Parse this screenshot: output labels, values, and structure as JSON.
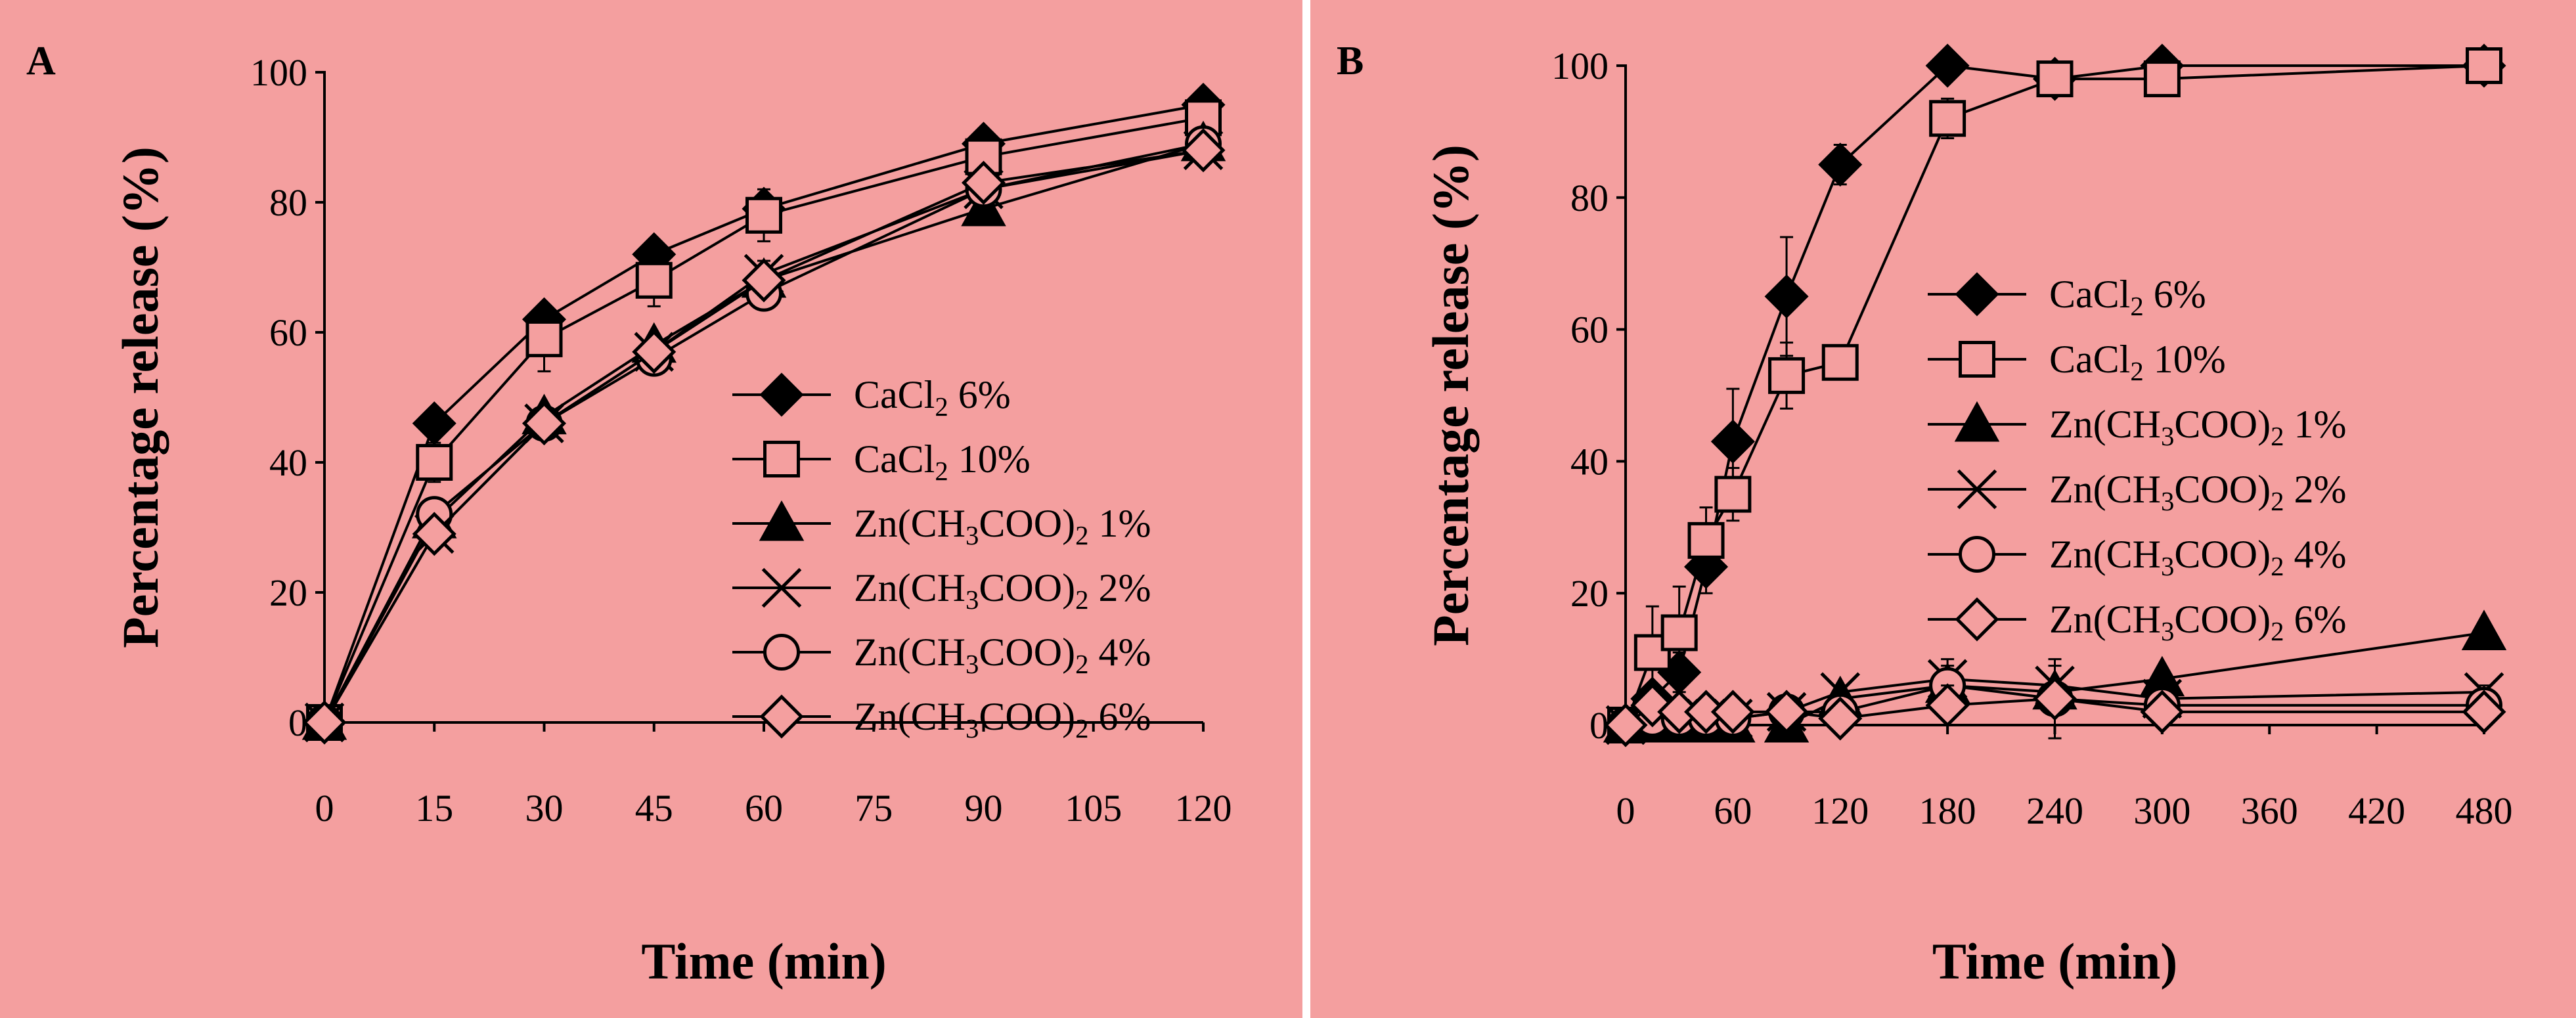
{
  "colors": {
    "background": "#f49f9f",
    "ink": "#000000",
    "hollow_fill": "#f49f9f",
    "divider": "#ffffff"
  },
  "chart_data": [
    {
      "type": "line",
      "panel_label": "A",
      "xlabel": "Time (min)",
      "ylabel": "Percentage release (%)",
      "xlim": [
        0,
        120
      ],
      "ylim": [
        0,
        100
      ],
      "xticks": [
        0,
        15,
        30,
        45,
        60,
        75,
        90,
        105,
        120
      ],
      "yticks": [
        0,
        20,
        40,
        60,
        80,
        100
      ],
      "grid": false,
      "legend_position": "center-right",
      "series": [
        {
          "name": "CaCl2 6%",
          "name_parts": {
            "base": "CaCl",
            "sub": "2",
            "tail": " 6%"
          },
          "marker": "diamond-filled",
          "x": [
            0,
            15,
            30,
            45,
            60,
            90,
            120
          ],
          "y": [
            0,
            46,
            62,
            72,
            79,
            89,
            95
          ],
          "err": [
            0,
            2,
            2,
            2,
            2,
            1,
            1
          ]
        },
        {
          "name": "CaCl2 10%",
          "name_parts": {
            "base": "CaCl",
            "sub": "2",
            "tail": " 10%"
          },
          "marker": "square-open",
          "x": [
            0,
            15,
            30,
            45,
            60,
            90,
            120
          ],
          "y": [
            0,
            40,
            59,
            68,
            78,
            87,
            93
          ],
          "err": [
            0,
            3,
            5,
            4,
            4,
            2,
            1
          ]
        },
        {
          "name": "Zn(CH3COO)2 1%",
          "name_parts": {
            "base": "Zn(CH",
            "sub": "3",
            "mid": "COO)",
            "sub2": "2",
            "tail": " 1%"
          },
          "marker": "triangle-filled",
          "x": [
            0,
            15,
            30,
            45,
            60,
            90,
            120
          ],
          "y": [
            0,
            31,
            47,
            58,
            68,
            79,
            89
          ],
          "err": [
            0,
            1,
            1,
            1,
            1,
            1,
            1
          ]
        },
        {
          "name": "Zn(CH3COO)2 2%",
          "name_parts": {
            "base": "Zn(CH",
            "sub": "3",
            "mid": "COO)",
            "sub2": "2",
            "tail": " 2%"
          },
          "marker": "cross",
          "x": [
            0,
            15,
            30,
            45,
            60,
            90,
            120
          ],
          "y": [
            0,
            29,
            46,
            57,
            69,
            82,
            88
          ],
          "err": [
            0,
            1,
            1,
            1,
            2,
            1,
            1
          ]
        },
        {
          "name": "Zn(CH3COO)2 4%",
          "name_parts": {
            "base": "Zn(CH",
            "sub": "3",
            "mid": "COO)",
            "sub2": "2",
            "tail": " 4%"
          },
          "marker": "circle-open",
          "x": [
            0,
            15,
            30,
            45,
            60,
            90,
            120
          ],
          "y": [
            0,
            32,
            46,
            56,
            66,
            82,
            89
          ],
          "err": [
            0,
            1,
            1,
            1,
            1,
            1,
            1
          ]
        },
        {
          "name": "Zn(CH3COO)2 6%",
          "name_parts": {
            "base": "Zn(CH",
            "sub": "3",
            "mid": "COO)",
            "sub2": "2",
            "tail": " 6%"
          },
          "marker": "diamond-open",
          "x": [
            0,
            15,
            30,
            45,
            60,
            90,
            120
          ],
          "y": [
            0,
            29,
            46,
            57,
            68,
            83,
            88
          ],
          "err": [
            0,
            1,
            1,
            1,
            1,
            1,
            1
          ]
        }
      ]
    },
    {
      "type": "line",
      "panel_label": "B",
      "xlabel": "Time (min)",
      "ylabel": "Percentage release (%)",
      "xlim": [
        0,
        480
      ],
      "ylim": [
        0,
        100
      ],
      "xticks": [
        0,
        60,
        120,
        180,
        240,
        300,
        360,
        420,
        480
      ],
      "yticks": [
        0,
        20,
        40,
        60,
        80,
        100
      ],
      "grid": false,
      "legend_position": "center-right",
      "series": [
        {
          "name": "CaCl2 6%",
          "name_parts": {
            "base": "CaCl",
            "sub": "2",
            "tail": " 6%"
          },
          "marker": "diamond-filled",
          "x": [
            0,
            15,
            30,
            45,
            60,
            90,
            120,
            180,
            240,
            300,
            480
          ],
          "y": [
            0,
            4,
            8,
            24,
            43,
            65,
            85,
            100,
            98,
            100,
            100
          ],
          "err": [
            0,
            2,
            3,
            4,
            8,
            9,
            3,
            1,
            2,
            1,
            1
          ]
        },
        {
          "name": "CaCl2 10%",
          "name_parts": {
            "base": "CaCl",
            "sub": "2",
            "tail": " 10%"
          },
          "marker": "square-open",
          "x": [
            0,
            15,
            30,
            45,
            60,
            90,
            120,
            180,
            240,
            300,
            480
          ],
          "y": [
            0,
            11,
            14,
            28,
            35,
            53,
            55,
            92,
            98,
            98,
            100
          ],
          "err": [
            0,
            7,
            7,
            5,
            4,
            5,
            2,
            3,
            2,
            2,
            1
          ]
        },
        {
          "name": "Zn(CH3COO)2 1%",
          "name_parts": {
            "base": "Zn(CH",
            "sub": "3",
            "mid": "COO)",
            "sub2": "2",
            "tail": " 1%"
          },
          "marker": "triangle-filled",
          "x": [
            0,
            15,
            30,
            45,
            60,
            90,
            120,
            180,
            240,
            300,
            480
          ],
          "y": [
            0,
            0,
            0,
            0,
            0,
            0,
            4,
            6,
            5,
            7,
            14
          ],
          "err": [
            0,
            0,
            0,
            0,
            0,
            0,
            1,
            2,
            2,
            1,
            1
          ]
        },
        {
          "name": "Zn(CH3COO)2 2%",
          "name_parts": {
            "base": "Zn(CH",
            "sub": "3",
            "mid": "COO)",
            "sub2": "2",
            "tail": " 2%"
          },
          "marker": "cross",
          "x": [
            0,
            15,
            30,
            45,
            60,
            90,
            120,
            180,
            240,
            300,
            480
          ],
          "y": [
            0,
            1,
            1,
            1,
            1,
            2,
            5,
            7,
            6,
            4,
            5
          ],
          "err": [
            0,
            1,
            1,
            1,
            1,
            1,
            1,
            2,
            3,
            2,
            1
          ]
        },
        {
          "name": "Zn(CH3COO)2 4%",
          "name_parts": {
            "base": "Zn(CH",
            "sub": "3",
            "mid": "COO)",
            "sub2": "2",
            "tail": " 4%"
          },
          "marker": "circle-open",
          "x": [
            0,
            15,
            30,
            45,
            60,
            90,
            120,
            180,
            240,
            300,
            480
          ],
          "y": [
            0,
            1,
            1,
            1,
            1,
            2,
            2,
            6,
            4,
            3,
            3
          ],
          "err": [
            0,
            1,
            1,
            1,
            1,
            1,
            1,
            4,
            6,
            2,
            1
          ]
        },
        {
          "name": "Zn(CH3COO)2 6%",
          "name_parts": {
            "base": "Zn(CH",
            "sub": "3",
            "mid": "COO)",
            "sub2": "2",
            "tail": " 6%"
          },
          "marker": "diamond-open",
          "x": [
            0,
            15,
            30,
            45,
            60,
            90,
            120,
            180,
            240,
            300,
            480
          ],
          "y": [
            0,
            3,
            2,
            2,
            2,
            2,
            1,
            3,
            4,
            2,
            2
          ],
          "err": [
            0,
            1,
            1,
            1,
            1,
            1,
            1,
            3,
            2,
            1,
            1
          ]
        }
      ]
    }
  ]
}
